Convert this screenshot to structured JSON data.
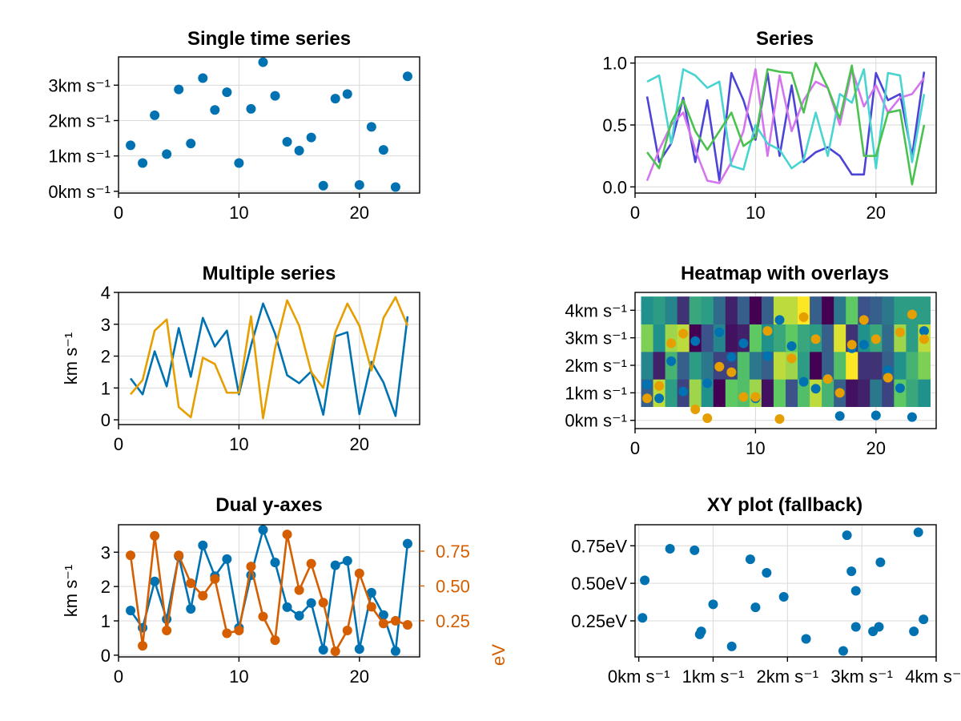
{
  "chart_data": [
    {
      "type": "scatter",
      "title": "Single time series",
      "xlim": [
        0,
        25
      ],
      "ylim": [
        -0.05,
        3.8
      ],
      "xticks": [
        0,
        10,
        20
      ],
      "yticks": [
        0,
        1,
        2,
        3
      ],
      "ytick_labels": [
        "0km s⁻¹",
        "1km s⁻¹",
        "2km s⁻¹",
        "3km s⁻¹"
      ],
      "xlabel": "",
      "ylabel": "",
      "grid": true,
      "x": [
        1,
        2,
        3,
        4,
        5,
        6,
        7,
        8,
        9,
        10,
        11,
        12,
        13,
        14,
        15,
        16,
        17,
        18,
        19,
        20,
        21,
        22,
        23,
        24
      ],
      "series": [
        {
          "color": "#0072b2",
          "values": [
            1.3,
            0.8,
            2.15,
            1.05,
            2.88,
            1.35,
            3.2,
            2.3,
            2.8,
            0.8,
            2.33,
            3.65,
            2.7,
            1.4,
            1.15,
            1.52,
            0.16,
            2.62,
            2.75,
            0.18,
            1.82,
            1.17,
            0.12,
            3.25
          ]
        }
      ]
    },
    {
      "type": "line",
      "title": "Series",
      "xlim": [
        0,
        25
      ],
      "ylim": [
        -0.05,
        1.05
      ],
      "xticks": [
        0,
        10,
        20
      ],
      "yticks": [
        0.0,
        0.5,
        1.0
      ],
      "ytick_labels": [
        "0.0",
        "0.5",
        "1.0"
      ],
      "xlabel": "",
      "ylabel": "",
      "grid": true,
      "x": [
        1,
        2,
        3,
        4,
        5,
        6,
        7,
        8,
        9,
        10,
        11,
        12,
        13,
        14,
        15,
        16,
        17,
        18,
        19,
        20,
        21,
        22,
        23,
        24
      ],
      "series": [
        {
          "color": "#4c44d6",
          "values": [
            0.73,
            0.2,
            0.35,
            0.72,
            0.2,
            0.7,
            0.05,
            0.92,
            0.7,
            0.38,
            0.92,
            0.25,
            0.82,
            0.2,
            0.28,
            0.32,
            0.25,
            0.1,
            0.1,
            0.92,
            0.7,
            0.75,
            0.25,
            0.93
          ]
        },
        {
          "color": "#d575ee",
          "values": [
            0.05,
            0.3,
            0.5,
            0.6,
            0.3,
            0.05,
            0.03,
            0.2,
            0.45,
            0.95,
            0.25,
            0.9,
            0.45,
            0.7,
            0.85,
            0.8,
            0.5,
            0.95,
            0.65,
            0.82,
            0.6,
            0.72,
            0.75,
            0.88
          ]
        },
        {
          "color": "#48d4d0",
          "values": [
            0.85,
            0.9,
            0.35,
            0.95,
            0.9,
            0.8,
            0.85,
            0.17,
            0.14,
            0.5,
            0.35,
            0.3,
            0.15,
            0.22,
            0.6,
            0.25,
            0.75,
            0.68,
            0.95,
            0.15,
            0.92,
            0.9,
            0.2,
            0.75
          ]
        },
        {
          "color": "#4bc24f",
          "values": [
            0.28,
            0.15,
            0.52,
            0.7,
            0.45,
            0.3,
            0.45,
            0.6,
            0.33,
            0.4,
            0.95,
            0.93,
            0.92,
            0.6,
            1.0,
            0.8,
            0.55,
            0.98,
            0.25,
            0.25,
            0.6,
            0.62,
            0.02,
            0.5
          ]
        }
      ]
    },
    {
      "type": "line",
      "title": "Multiple series",
      "xlim": [
        0,
        25
      ],
      "ylim": [
        -0.15,
        4.0
      ],
      "xticks": [
        0,
        10,
        20
      ],
      "yticks": [
        0,
        1,
        2,
        3,
        4
      ],
      "ytick_labels": [
        "0",
        "1",
        "2",
        "3",
        "4"
      ],
      "xlabel": "",
      "ylabel": "km s⁻¹",
      "grid": true,
      "x": [
        1,
        2,
        3,
        4,
        5,
        6,
        7,
        8,
        9,
        10,
        11,
        12,
        13,
        14,
        15,
        16,
        17,
        18,
        19,
        20,
        21,
        22,
        23,
        24
      ],
      "series": [
        {
          "color": "#0072b2",
          "values": [
            1.3,
            0.8,
            2.15,
            1.05,
            2.88,
            1.35,
            3.2,
            2.3,
            2.8,
            0.8,
            2.33,
            3.65,
            2.7,
            1.4,
            1.15,
            1.52,
            0.16,
            2.62,
            2.75,
            0.18,
            1.82,
            1.17,
            0.12,
            3.25
          ]
        },
        {
          "color": "#e69f00",
          "values": [
            0.8,
            1.25,
            2.8,
            3.15,
            0.4,
            0.08,
            1.95,
            1.75,
            0.85,
            0.85,
            3.25,
            0.05,
            2.25,
            3.75,
            2.95,
            1.5,
            1.0,
            2.75,
            3.65,
            2.95,
            1.55,
            3.2,
            3.85,
            2.95
          ]
        }
      ]
    },
    {
      "type": "heatmap",
      "title": "Heatmap with overlays",
      "xlim": [
        0,
        25
      ],
      "ylim": [
        -0.3,
        4.65
      ],
      "xticks": [
        0,
        10,
        20
      ],
      "yticks": [
        0,
        1,
        2,
        3,
        4
      ],
      "ytick_labels": [
        "0km s⁻¹",
        "1km s⁻¹",
        "2km s⁻¹",
        "3km s⁻¹",
        "4km s⁻¹"
      ],
      "xlabel": "",
      "ylabel": "",
      "grid": true,
      "heatmap": {
        "x_edges_start": 0.5,
        "x_step": 1,
        "ncols": 24,
        "y_edges_start": 0.5,
        "y_step": 1,
        "nrows": 4,
        "values": [
          [
            0.3,
            0.9,
            0.55,
            0.2,
            0.85,
            0.5,
            0.0,
            0.75,
            0.7,
            0.85,
            0.05,
            0.75,
            0.25,
            0.7,
            0.9,
            0.65,
            0.3,
            0.05,
            0.1,
            0.4,
            0.2,
            0.75,
            0.6,
            0.5
          ],
          [
            0.45,
            0.1,
            0.65,
            0.3,
            0.55,
            0.4,
            0.2,
            0.2,
            0.7,
            0.4,
            0.3,
            0.9,
            0.85,
            0.55,
            0.0,
            0.3,
            0.7,
            1.0,
            0.15,
            0.15,
            0.3,
            0.5,
            0.65,
            0.8
          ],
          [
            0.8,
            0.5,
            0.85,
            0.9,
            0.0,
            0.25,
            0.45,
            0.05,
            0.1,
            0.75,
            0.5,
            0.6,
            0.75,
            0.6,
            0.55,
            0.3,
            0.95,
            0.15,
            0.5,
            0.6,
            0.35,
            0.85,
            0.55,
            0.9
          ],
          [
            0.5,
            0.55,
            0.45,
            0.15,
            0.6,
            0.55,
            0.35,
            0.1,
            0.3,
            0.0,
            0.3,
            0.9,
            0.9,
            1.0,
            0.3,
            0.0,
            0.4,
            0.75,
            0.25,
            0.3,
            0.4,
            0.55,
            0.55,
            0.55
          ]
        ]
      },
      "x": [
        1,
        2,
        3,
        4,
        5,
        6,
        7,
        8,
        9,
        10,
        11,
        12,
        13,
        14,
        15,
        16,
        17,
        18,
        19,
        20,
        21,
        22,
        23,
        24
      ],
      "series": [
        {
          "color": "#0072b2",
          "values": [
            1.3,
            0.8,
            2.15,
            1.05,
            2.88,
            1.35,
            3.2,
            2.3,
            2.8,
            0.8,
            2.33,
            3.65,
            2.7,
            1.4,
            1.15,
            1.52,
            0.16,
            2.62,
            2.75,
            0.18,
            1.82,
            1.17,
            0.12,
            3.25
          ]
        },
        {
          "color": "#e69f00",
          "values": [
            0.8,
            1.25,
            2.8,
            3.15,
            0.4,
            0.08,
            1.95,
            1.75,
            0.85,
            0.85,
            3.25,
            0.05,
            2.25,
            3.75,
            2.95,
            1.5,
            1.0,
            2.75,
            3.65,
            2.95,
            1.55,
            3.2,
            3.85,
            2.95
          ]
        }
      ]
    },
    {
      "type": "line",
      "title": "Dual y-axes",
      "xlim": [
        0,
        25
      ],
      "ylim": [
        -0.05,
        3.8
      ],
      "xticks": [
        0,
        10,
        20
      ],
      "yticks": [
        0,
        1,
        2,
        3
      ],
      "ytick_labels": [
        "0",
        "1",
        "2",
        "3"
      ],
      "xlabel": "",
      "ylabel": "km s⁻¹",
      "grid": true,
      "x": [
        1,
        2,
        3,
        4,
        5,
        6,
        7,
        8,
        9,
        10,
        11,
        12,
        13,
        14,
        15,
        16,
        17,
        18,
        19,
        20,
        21,
        22,
        23,
        24
      ],
      "series": [
        {
          "color": "#0072b2",
          "axis": "left",
          "values": [
            1.3,
            0.8,
            2.15,
            1.05,
            2.88,
            1.35,
            3.2,
            2.3,
            2.8,
            0.8,
            2.33,
            3.65,
            2.7,
            1.4,
            1.15,
            1.52,
            0.16,
            2.62,
            2.75,
            0.18,
            1.82,
            1.17,
            0.12,
            3.25
          ]
        },
        {
          "color": "#d55e00",
          "axis": "right",
          "values": [
            0.72,
            0.07,
            0.86,
            0.18,
            0.72,
            0.52,
            0.43,
            0.55,
            0.16,
            0.18,
            0.64,
            0.28,
            0.11,
            0.87,
            0.47,
            0.66,
            0.38,
            0.03,
            0.18,
            0.59,
            0.35,
            0.23,
            0.25,
            0.22
          ]
        }
      ],
      "right_axis": {
        "ylim": [
          -0.01,
          0.94
        ],
        "yticks": [
          0.25,
          0.5,
          0.75
        ],
        "ytick_labels": [
          "0.25",
          "0.50",
          "0.75"
        ],
        "ylabel": "eV",
        "color": "#d55e00"
      }
    },
    {
      "type": "scatter",
      "title": "XY plot (fallback)",
      "xlim": [
        -0.05,
        4.0
      ],
      "ylim": [
        0.01,
        0.89
      ],
      "xticks": [
        0,
        1,
        2,
        3,
        4
      ],
      "xtick_labels": [
        "0km s⁻¹",
        "1km s⁻¹",
        "2km s⁻¹",
        "3km s⁻¹",
        "4km s⁻¹"
      ],
      "yticks": [
        0.25,
        0.5,
        0.75
      ],
      "ytick_labels": [
        "0.25eV",
        "0.50eV",
        "0.75eV"
      ],
      "xlabel": "",
      "ylabel": "",
      "grid": true,
      "x": [
        0.05,
        0.08,
        0.42,
        0.75,
        0.82,
        0.84,
        1.0,
        1.25,
        1.5,
        1.57,
        1.72,
        1.95,
        2.25,
        2.75,
        2.8,
        2.86,
        2.92,
        2.92,
        3.15,
        3.23,
        3.25,
        3.7,
        3.76,
        3.83
      ],
      "series": [
        {
          "color": "#0072b2",
          "values": [
            0.27,
            0.52,
            0.73,
            0.72,
            0.16,
            0.18,
            0.36,
            0.08,
            0.66,
            0.34,
            0.57,
            0.41,
            0.13,
            0.05,
            0.82,
            0.58,
            0.45,
            0.21,
            0.18,
            0.21,
            0.64,
            0.18,
            0.84,
            0.26
          ]
        }
      ]
    }
  ]
}
